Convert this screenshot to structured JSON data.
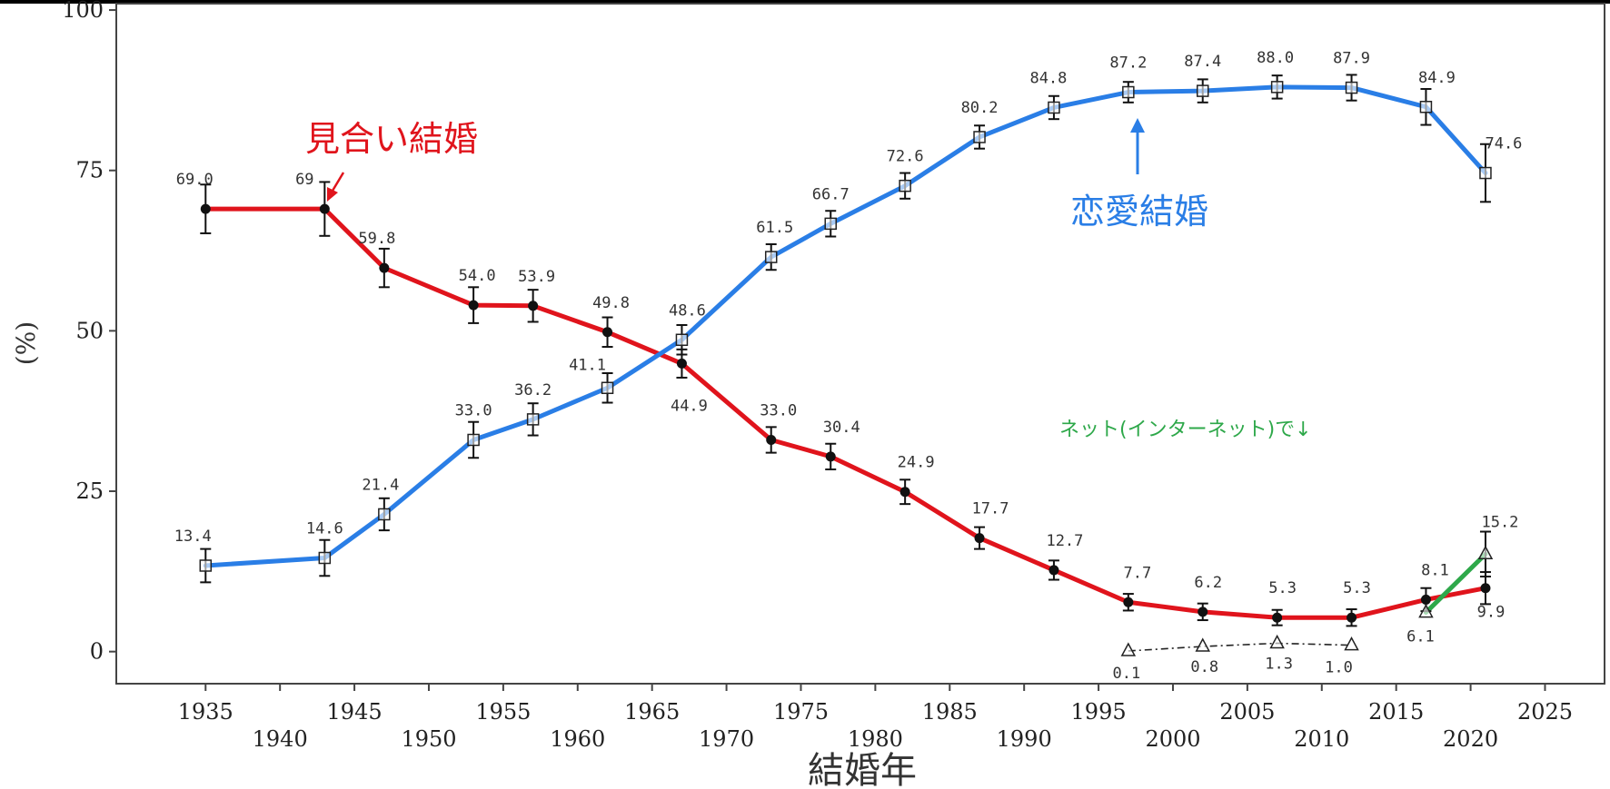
{
  "chart_data": {
    "type": "line",
    "title": "",
    "xlabel": "結婚年",
    "ylabel": "(%)",
    "xlim": [
      1929,
      2029
    ],
    "ylim": [
      -5,
      101
    ],
    "xticks_row1": [
      1935,
      1945,
      1955,
      1965,
      1975,
      1985,
      1995,
      2005,
      2015,
      2025
    ],
    "xticks_row2": [
      1940,
      1950,
      1960,
      1970,
      1980,
      1990,
      2000,
      2010,
      2020
    ],
    "yticks": [
      0,
      25,
      50,
      75,
      100
    ],
    "grid": false,
    "series": [
      {
        "name": "見合い結婚",
        "color": "#e0141c",
        "marker": "filled-circle",
        "points": [
          {
            "x": 1935,
            "y": 69.0,
            "label": "69.0",
            "err": 3.8
          },
          {
            "x": 1943,
            "y": 69.0,
            "label": "69",
            "err": 4.2
          },
          {
            "x": 1947,
            "y": 59.8,
            "label": "59.8",
            "err": 3.0
          },
          {
            "x": 1953,
            "y": 54.0,
            "label": "54.0",
            "err": 2.8
          },
          {
            "x": 1957,
            "y": 53.9,
            "label": "53.9",
            "err": 2.5
          },
          {
            "x": 1962,
            "y": 49.8,
            "label": "49.8",
            "err": 2.3
          },
          {
            "x": 1967,
            "y": 44.9,
            "label": "44.9",
            "err": 2.2
          },
          {
            "x": 1973,
            "y": 33.0,
            "label": "33.0",
            "err": 2.0
          },
          {
            "x": 1977,
            "y": 30.4,
            "label": "30.4",
            "err": 2.0
          },
          {
            "x": 1982,
            "y": 24.9,
            "label": "24.9",
            "err": 1.9
          },
          {
            "x": 1987,
            "y": 17.7,
            "label": "17.7",
            "err": 1.7
          },
          {
            "x": 1992,
            "y": 12.7,
            "label": "12.7",
            "err": 1.5
          },
          {
            "x": 1997,
            "y": 7.7,
            "label": "7.7",
            "err": 1.3
          },
          {
            "x": 2002,
            "y": 6.2,
            "label": "6.2",
            "err": 1.3
          },
          {
            "x": 2007,
            "y": 5.3,
            "label": "5.3",
            "err": 1.2
          },
          {
            "x": 2012,
            "y": 5.3,
            "label": "5.3",
            "err": 1.3
          },
          {
            "x": 2017,
            "y": 8.1,
            "label": "8.1",
            "err": 1.8
          },
          {
            "x": 2021,
            "y": 9.9,
            "label": "9.9",
            "err": 2.5
          }
        ]
      },
      {
        "name": "恋愛結婚",
        "color": "#2a7ee6",
        "marker": "open-square",
        "points": [
          {
            "x": 1935,
            "y": 13.4,
            "label": "13.4",
            "err": 2.6
          },
          {
            "x": 1943,
            "y": 14.6,
            "label": "14.6",
            "err": 2.8
          },
          {
            "x": 1947,
            "y": 21.4,
            "label": "21.4",
            "err": 2.5
          },
          {
            "x": 1953,
            "y": 33.0,
            "label": "33.0",
            "err": 2.8
          },
          {
            "x": 1957,
            "y": 36.2,
            "label": "36.2",
            "err": 2.5
          },
          {
            "x": 1962,
            "y": 41.1,
            "label": "41.1",
            "err": 2.3
          },
          {
            "x": 1967,
            "y": 48.6,
            "label": "48.6",
            "err": 2.3
          },
          {
            "x": 1973,
            "y": 61.5,
            "label": "61.5",
            "err": 2.0
          },
          {
            "x": 1977,
            "y": 66.7,
            "label": "66.7",
            "err": 2.0
          },
          {
            "x": 1982,
            "y": 72.6,
            "label": "72.6",
            "err": 2.0
          },
          {
            "x": 1987,
            "y": 80.2,
            "label": "80.2",
            "err": 1.8
          },
          {
            "x": 1992,
            "y": 84.8,
            "label": "84.8",
            "err": 1.8
          },
          {
            "x": 1997,
            "y": 87.2,
            "label": "87.2",
            "err": 1.6
          },
          {
            "x": 2002,
            "y": 87.4,
            "label": "87.4",
            "err": 1.8
          },
          {
            "x": 2007,
            "y": 88.0,
            "label": "88.0",
            "err": 1.8
          },
          {
            "x": 2012,
            "y": 87.9,
            "label": "87.9",
            "err": 2.0
          },
          {
            "x": 2017,
            "y": 84.9,
            "label": "84.9",
            "err": 2.8
          },
          {
            "x": 2021,
            "y": 74.6,
            "label": "74.6",
            "err": 4.5
          }
        ]
      },
      {
        "name": "ネット(インターネット)で",
        "color": "#2ea84a",
        "marker": "open-triangle",
        "points": [
          {
            "x": 1997,
            "y": 0.1,
            "label": "0.1",
            "err": 0
          },
          {
            "x": 2002,
            "y": 0.8,
            "label": "0.8",
            "err": 0
          },
          {
            "x": 2007,
            "y": 1.3,
            "label": "1.3",
            "err": 0
          },
          {
            "x": 2012,
            "y": 1.0,
            "label": "1.0",
            "err": 0
          },
          {
            "x": 2017,
            "y": 6.1,
            "label": "6.1",
            "err": 0
          },
          {
            "x": 2021,
            "y": 15.2,
            "label": "15.2",
            "err": 3.5
          }
        ]
      }
    ],
    "annotations": [
      {
        "text": "見合い結婚",
        "color": "#e0141c"
      },
      {
        "text": "恋愛結婚",
        "color": "#2a7ee6"
      },
      {
        "text": "ネット(インターネット)で↓",
        "color": "#2ea84a"
      }
    ]
  }
}
